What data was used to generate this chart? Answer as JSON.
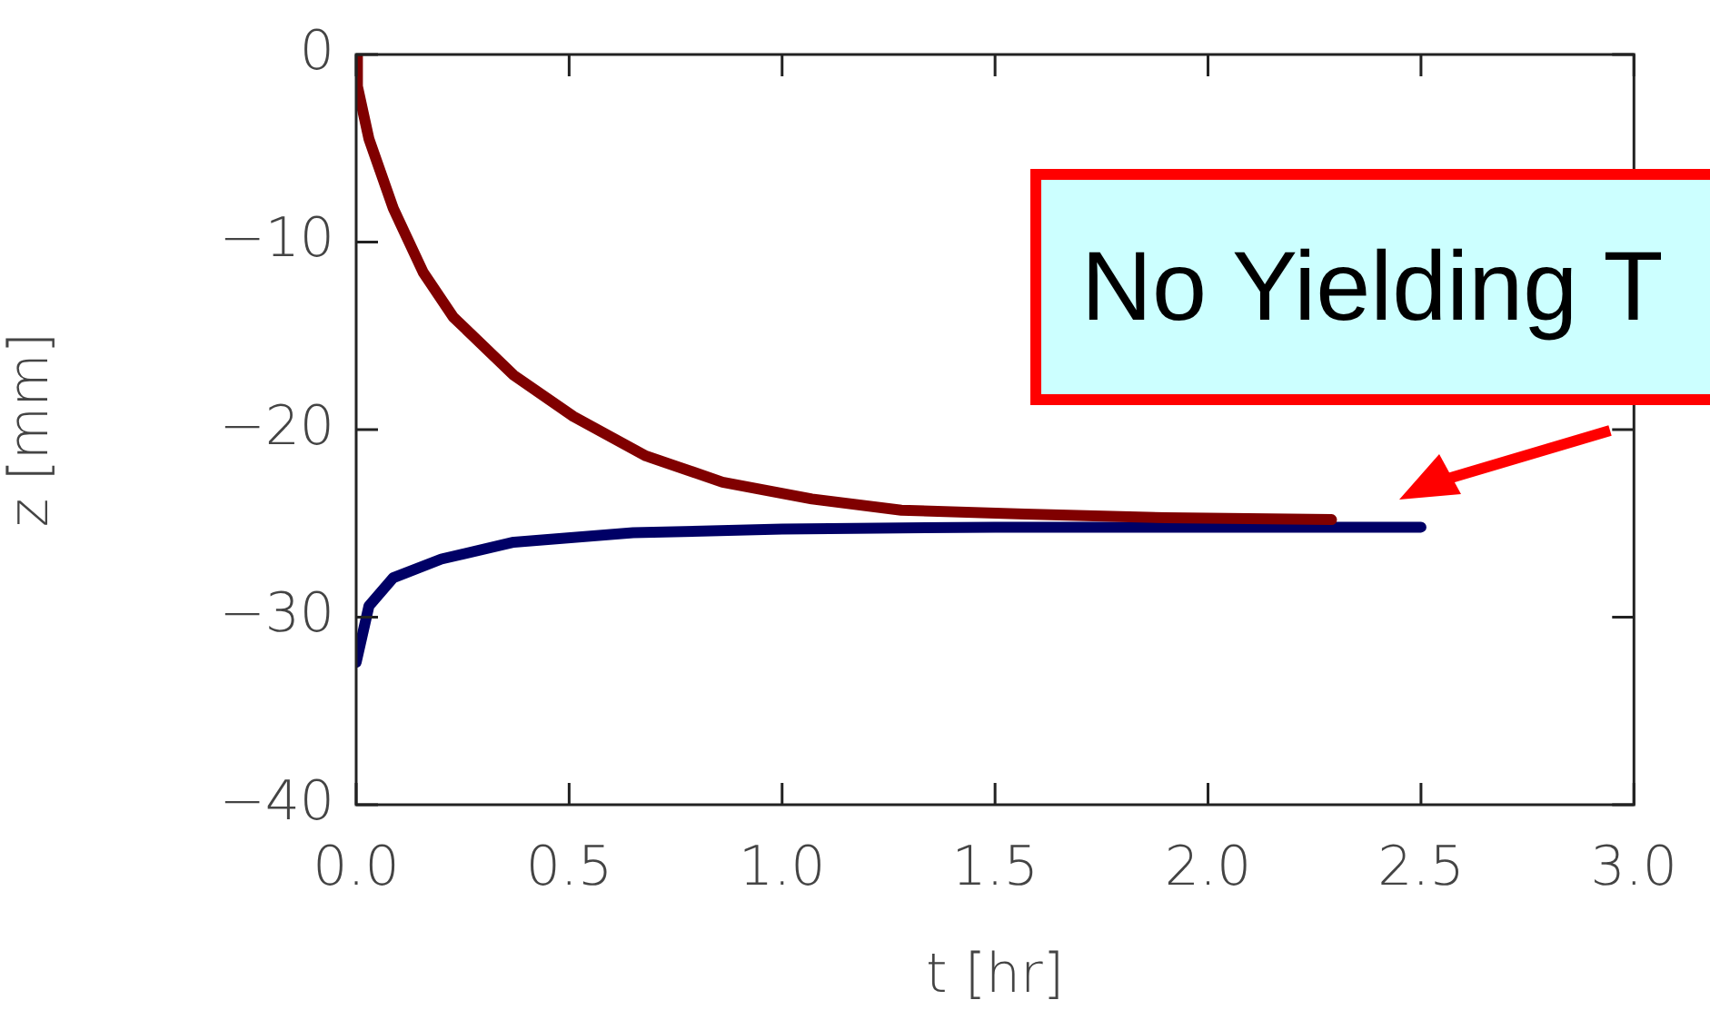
{
  "chart_data": {
    "type": "line",
    "xlabel": "t [hr]",
    "ylabel": "z [mm]",
    "series": [
      {
        "color": "#800000",
        "x": [
          0,
          0.003,
          0.03,
          0.087,
          0.157,
          0.228,
          0.37,
          0.51,
          0.68,
          0.86,
          1.07,
          1.28,
          1.57,
          1.9,
          2.29
        ],
        "values": [
          -0.1,
          -1.7,
          -4.5,
          -8.2,
          -11.6,
          -14.0,
          -17.1,
          -19.3,
          -21.4,
          -22.8,
          -23.7,
          -24.3,
          -24.5,
          -24.7,
          -24.8
        ]
      },
      {
        "color": "#000066",
        "x": [
          0,
          0.03,
          0.087,
          0.2,
          0.37,
          0.65,
          1.0,
          1.5,
          2.0,
          2.5
        ],
        "values": [
          -32.4,
          -29.4,
          -27.9,
          -26.9,
          -26.0,
          -25.5,
          -25.3,
          -25.2,
          -25.2,
          -25.2
        ]
      }
    ],
    "xlim": [
      0,
      3
    ],
    "xticks": [
      {
        "value": 0,
        "label": "0.0"
      },
      {
        "value": 0.5,
        "label": "0.5"
      },
      {
        "value": 1,
        "label": "1.0"
      },
      {
        "value": 1.5,
        "label": "1.5"
      },
      {
        "value": 2,
        "label": "2.0"
      },
      {
        "value": 2.5,
        "label": "2.5"
      },
      {
        "value": 3,
        "label": "3.0"
      }
    ],
    "ylim": [
      -40,
      0
    ],
    "yticks": [
      {
        "value": -40,
        "label": "−40"
      },
      {
        "value": -30,
        "label": "−30"
      },
      {
        "value": -20,
        "label": "−20"
      },
      {
        "value": -10,
        "label": "−10"
      },
      0
    ],
    "annotations": [
      "No Yielding T"
    ],
    "grid": false,
    "legend": false,
    "marker": "none",
    "line_style": "solid"
  }
}
